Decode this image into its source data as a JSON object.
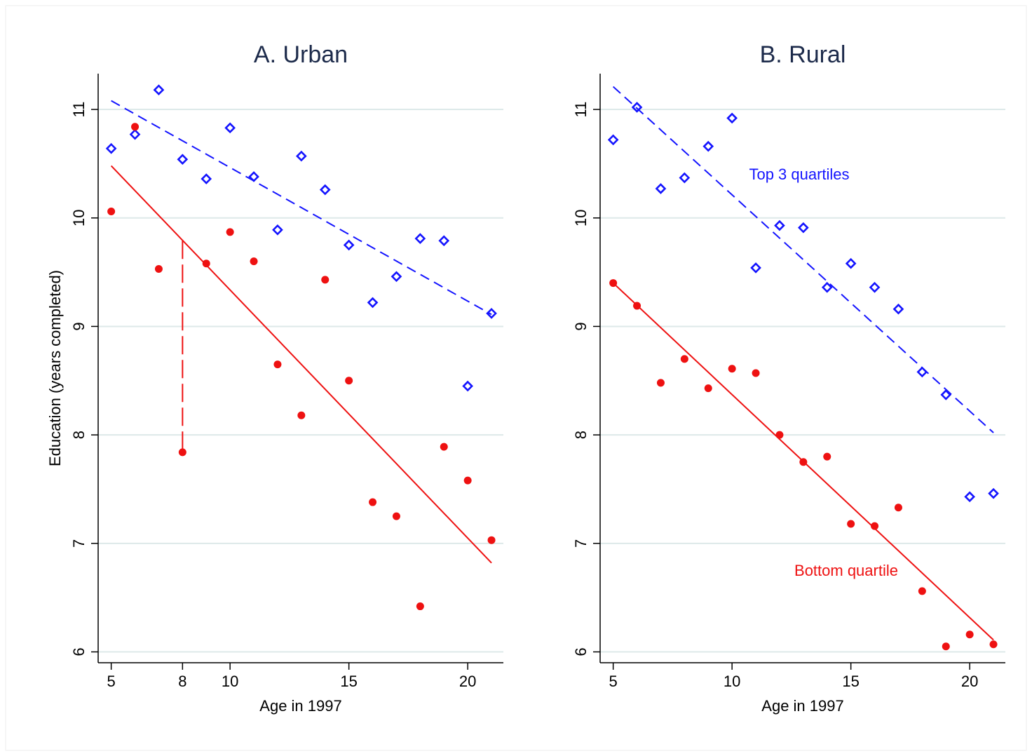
{
  "chart_data": [
    {
      "type": "scatter",
      "title": "A. Urban",
      "x_label": "Age in 1997",
      "y_label": "Education (years completed)",
      "xlim": [
        4.45,
        21.5
      ],
      "ylim": [
        5.9,
        11.33
      ],
      "xticks": [
        5,
        8,
        10,
        15,
        20
      ],
      "yticks": [
        6,
        7,
        8,
        9,
        10,
        11
      ],
      "grid": true,
      "series": [
        {
          "kind": "points",
          "marker": "diamond",
          "color": "#1414ff",
          "x": [
            5,
            6,
            7,
            8,
            9,
            10,
            11,
            12,
            13,
            14,
            15,
            16,
            17,
            18,
            19,
            20,
            21
          ],
          "values": [
            10.64,
            10.77,
            11.18,
            10.54,
            10.36,
            10.83,
            10.38,
            9.89,
            10.57,
            10.26,
            9.75,
            9.22,
            9.46,
            9.81,
            9.79,
            8.45,
            9.12
          ]
        },
        {
          "kind": "line",
          "style": "dashed",
          "color": "#1414ff",
          "x": [
            5,
            21
          ],
          "values": [
            11.08,
            9.11
          ]
        },
        {
          "kind": "points",
          "marker": "dot",
          "color": "#ee1111",
          "x": [
            5,
            6,
            7,
            8,
            9,
            10,
            11,
            12,
            13,
            14,
            15,
            16,
            17,
            18,
            19,
            20,
            21
          ],
          "values": [
            10.06,
            10.84,
            9.53,
            7.84,
            9.58,
            9.87,
            9.6,
            8.65,
            8.18,
            9.43,
            8.5,
            7.38,
            7.25,
            6.42,
            7.89,
            7.58,
            7.03
          ]
        },
        {
          "kind": "line",
          "style": "solid",
          "color": "#ee1111",
          "x": [
            5,
            21
          ],
          "values": [
            10.48,
            6.82
          ]
        },
        {
          "kind": "line",
          "style": "longdash",
          "color": "#ee1111",
          "x": [
            8,
            8
          ],
          "values": [
            9.79,
            7.84
          ]
        }
      ]
    },
    {
      "type": "scatter",
      "title": "B. Rural",
      "x_label": "Age in 1997",
      "xlim": [
        4.45,
        21.5
      ],
      "ylim": [
        5.9,
        11.33
      ],
      "xticks": [
        5,
        10,
        15,
        20
      ],
      "yticks": [
        6,
        7,
        8,
        9,
        10,
        11
      ],
      "grid": true,
      "series": [
        {
          "kind": "points",
          "marker": "diamond",
          "color": "#1414ff",
          "x": [
            5,
            6,
            7,
            8,
            9,
            10,
            11,
            12,
            13,
            14,
            15,
            16,
            17,
            18,
            19,
            20,
            21
          ],
          "values": [
            10.72,
            11.02,
            10.27,
            10.37,
            10.66,
            10.92,
            9.54,
            9.93,
            9.91,
            9.36,
            9.58,
            9.36,
            9.16,
            8.58,
            8.37,
            7.43,
            7.46
          ]
        },
        {
          "kind": "line",
          "style": "dashed",
          "color": "#1414ff",
          "name": "Top 3 quartiles",
          "x": [
            5,
            21
          ],
          "values": [
            11.21,
            8.02
          ]
        },
        {
          "kind": "points",
          "marker": "dot",
          "color": "#ee1111",
          "x": [
            5,
            6,
            7,
            8,
            9,
            10,
            11,
            12,
            13,
            14,
            15,
            16,
            17,
            18,
            19,
            20,
            21
          ],
          "values": [
            9.4,
            9.19,
            8.48,
            8.7,
            8.43,
            8.61,
            8.57,
            8.0,
            7.75,
            7.8,
            7.18,
            7.16,
            7.33,
            6.56,
            6.05,
            6.16,
            6.07
          ]
        },
        {
          "kind": "line",
          "style": "solid",
          "color": "#ee1111",
          "name": "Bottom quartile",
          "x": [
            5,
            21
          ],
          "values": [
            9.4,
            6.11
          ]
        }
      ]
    }
  ]
}
